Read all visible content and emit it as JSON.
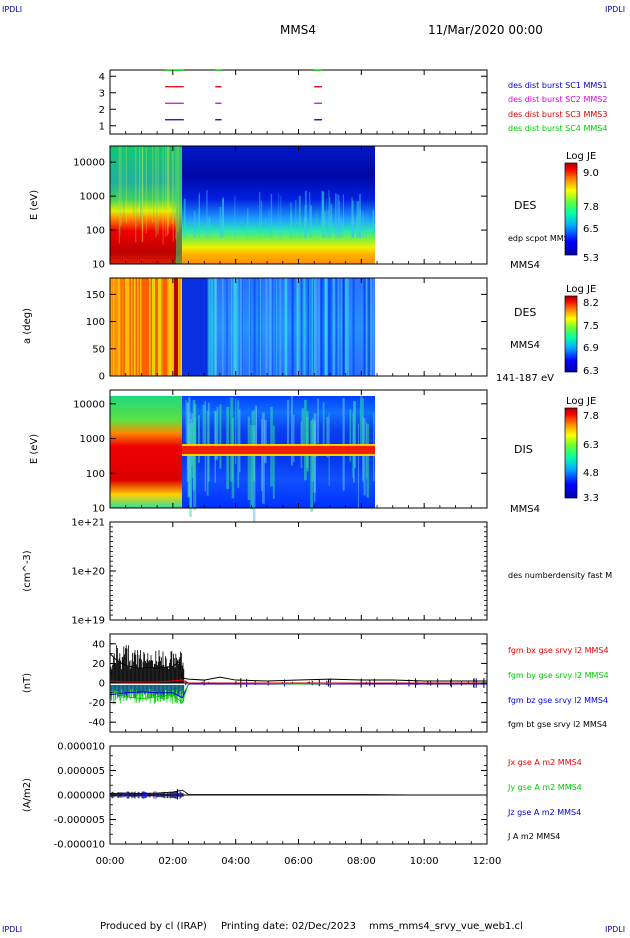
{
  "header": {
    "corner_left": "IPDLI",
    "corner_right": "IPDLI",
    "spacecraft": "MMS4",
    "date": "11/Mar/2020 00:00"
  },
  "footer": {
    "produced_by": "Produced by cl (IRAP)",
    "printing_date": "Printing date: 02/Dec/2023",
    "filename": "mms_mms4_srvy_vue_web1.cl",
    "corner_left": "IPDLI",
    "corner_right": "IPDLI"
  },
  "time_axis": {
    "ticks": [
      "00:00",
      "02:00",
      "04:00",
      "06:00",
      "08:00",
      "10:00",
      "12:00"
    ],
    "range_hours": [
      0,
      12
    ]
  },
  "colors": {
    "mms1": "#0000cc",
    "mms2": "#dd00dd",
    "mms3": "#dd0000",
    "mms4": "#00cc00",
    "bx": "#ee0000",
    "by": "#00cc00",
    "bz": "#0000dd",
    "bt": "#000000"
  },
  "chart_data": [
    {
      "type": "scatter",
      "panel": "burst-availability",
      "yticks": [
        "1",
        "2",
        "3",
        "4"
      ],
      "legend": [
        {
          "label": "des dist burst SC1 MMS1",
          "color": "#0000cc"
        },
        {
          "label": "des dist burst SC2 MMS2",
          "color": "#dd00dd"
        },
        {
          "label": "des dist burst SC3 MMS3",
          "color": "#dd0000"
        },
        {
          "label": "des dist burst SC4 MMS4",
          "color": "#00cc00"
        }
      ],
      "intervals": [
        {
          "sc": 4,
          "start": 1.75,
          "end": 2.35
        },
        {
          "sc": 4,
          "start": 3.35,
          "end": 3.55
        },
        {
          "sc": 4,
          "start": 6.5,
          "end": 6.75
        },
        {
          "sc": 3,
          "start": 1.75,
          "end": 2.35
        },
        {
          "sc": 3,
          "start": 3.35,
          "end": 3.55
        },
        {
          "sc": 3,
          "start": 6.5,
          "end": 6.75
        },
        {
          "sc": 2,
          "start": 1.75,
          "end": 2.35
        },
        {
          "sc": 2,
          "start": 3.35,
          "end": 3.55
        },
        {
          "sc": 2,
          "start": 6.5,
          "end": 6.75
        },
        {
          "sc": 1,
          "start": 1.75,
          "end": 2.35
        },
        {
          "sc": 1,
          "start": 3.35,
          "end": 3.55
        },
        {
          "sc": 1,
          "start": 6.5,
          "end": 6.75
        }
      ]
    },
    {
      "type": "heatmap",
      "panel": "des-energy-spectrogram",
      "ylabel": "E (eV)",
      "yscale": "log",
      "ylim": [
        10,
        30000
      ],
      "yticks": [
        "10",
        "100",
        "1000",
        "10000"
      ],
      "instrument": "DES",
      "spacecraft": "MMS4",
      "overlay_label": "edp scpot MMS4",
      "colorbar": {
        "title": "Log JE",
        "ticks": [
          "9.0",
          "7.8",
          "6.5",
          "5.3"
        ]
      },
      "data_end_hours": 8.45
    },
    {
      "type": "heatmap",
      "panel": "des-pitch-angle",
      "ylabel": "a (deg)",
      "ylim": [
        0,
        180
      ],
      "yticks": [
        "0",
        "50",
        "100",
        "150"
      ],
      "instrument": "DES",
      "spacecraft": "MMS4",
      "energy_range": "141-187 eV",
      "colorbar": {
        "title": "Log JE",
        "ticks": [
          "8.2",
          "7.5",
          "6.9",
          "6.3"
        ]
      },
      "data_end_hours": 8.45
    },
    {
      "type": "heatmap",
      "panel": "dis-energy-spectrogram",
      "ylabel": "E (eV)",
      "yscale": "log",
      "ylim": [
        10,
        25000
      ],
      "yticks": [
        "10",
        "100",
        "1000",
        "10000"
      ],
      "instrument": "DIS",
      "spacecraft": "MMS4",
      "colorbar": {
        "title": "Log JE",
        "ticks": [
          "7.8",
          "6.3",
          "4.8",
          "3.3"
        ]
      },
      "data_end_hours": 8.45
    },
    {
      "type": "line",
      "panel": "number-density",
      "ylabel": "(cm^-3)",
      "yscale": "log",
      "ylim": [
        1e+19,
        1e+21
      ],
      "yticks": [
        "1e+19",
        "1e+20",
        "1e+21"
      ],
      "legend": [
        {
          "label": "des numberdensity fast M",
          "color": "#000000"
        }
      ]
    },
    {
      "type": "line",
      "panel": "magnetic-field",
      "ylabel": "(nT)",
      "ylim": [
        -50,
        50
      ],
      "yticks": [
        "40",
        "20",
        "0",
        "-20",
        "-40"
      ],
      "legend": [
        {
          "label": "fgm bx gse srvy l2 MMS4",
          "color": "#ee0000"
        },
        {
          "label": "fgm by gse srvy l2 MMS4",
          "color": "#00cc00"
        },
        {
          "label": "fgm bz gse srvy l2 MMS4",
          "color": "#0000dd"
        },
        {
          "label": "fgm bt gse srvy l2 MMS4",
          "color": "#000000"
        }
      ],
      "series": [
        {
          "name": "fgm bt gse srvy l2 MMS4",
          "x": [
            0,
            0.25,
            0.5,
            0.75,
            1.0,
            1.25,
            1.5,
            1.75,
            2.0,
            2.2,
            2.3,
            2.5,
            3.0,
            3.5,
            4.0,
            5.0,
            6.0,
            7.0,
            8.0,
            9.0,
            10.0,
            11.0,
            12.0
          ],
          "values": [
            30,
            22,
            18,
            16,
            15,
            16,
            15,
            16,
            17,
            22,
            5,
            4,
            3,
            6,
            3,
            2,
            3,
            4,
            3,
            3,
            2,
            2,
            2
          ]
        },
        {
          "name": "fgm bz gse srvy l2 MMS4",
          "x": [
            0,
            0.5,
            1.0,
            1.5,
            2.0,
            2.3,
            2.5,
            4.0,
            6.0,
            8.0,
            10.0,
            12.0
          ],
          "values": [
            -12,
            -10,
            -9,
            -10,
            -10,
            -15,
            -1,
            -1,
            -1,
            -1,
            -1,
            -1
          ]
        },
        {
          "name": "fgm by gse srvy l2 MMS4",
          "x": [
            0,
            0.5,
            1.0,
            1.5,
            2.0,
            2.3,
            2.5,
            4.0,
            6.0,
            8.0,
            10.0,
            12.0
          ],
          "values": [
            -8,
            -14,
            -16,
            -14,
            -12,
            -20,
            0,
            0,
            -1,
            0,
            0,
            0
          ]
        },
        {
          "name": "fgm bx gse srvy l2 MMS4",
          "x": [
            0,
            0.5,
            1.0,
            1.5,
            2.0,
            2.3,
            2.5,
            4.0,
            6.0,
            8.0,
            10.0,
            12.0
          ],
          "values": [
            2,
            1,
            1,
            1,
            2,
            3,
            0,
            0,
            0,
            0,
            0,
            0
          ]
        }
      ]
    },
    {
      "type": "line",
      "panel": "current-density",
      "ylabel": "(A/m2)",
      "ylim": [
        -1e-05,
        1e-05
      ],
      "yticks": [
        "0.000010",
        "0.000005",
        "0.000000",
        "-0.000005",
        "-0.000010"
      ],
      "legend": [
        {
          "label": "Jx gse A m2 MMS4",
          "color": "#ee0000"
        },
        {
          "label": "Jy gse A m2 MMS4",
          "color": "#00cc00"
        },
        {
          "label": "Jz gse A m2 MMS4",
          "color": "#0000dd"
        },
        {
          "label": "J A m2 MMS4",
          "color": "#000000"
        }
      ],
      "series": [
        {
          "name": "J A m2 MMS4",
          "x": [
            0,
            0.5,
            1.0,
            1.5,
            2.0,
            2.3,
            2.5,
            4.0,
            6.0,
            8.0,
            10.0,
            12.0
          ],
          "values": [
            3e-07,
            4e-07,
            3e-07,
            4e-07,
            6e-07,
            1e-06,
            1e-07,
            1e-07,
            1e-07,
            1e-07,
            0,
            0
          ]
        }
      ]
    }
  ]
}
